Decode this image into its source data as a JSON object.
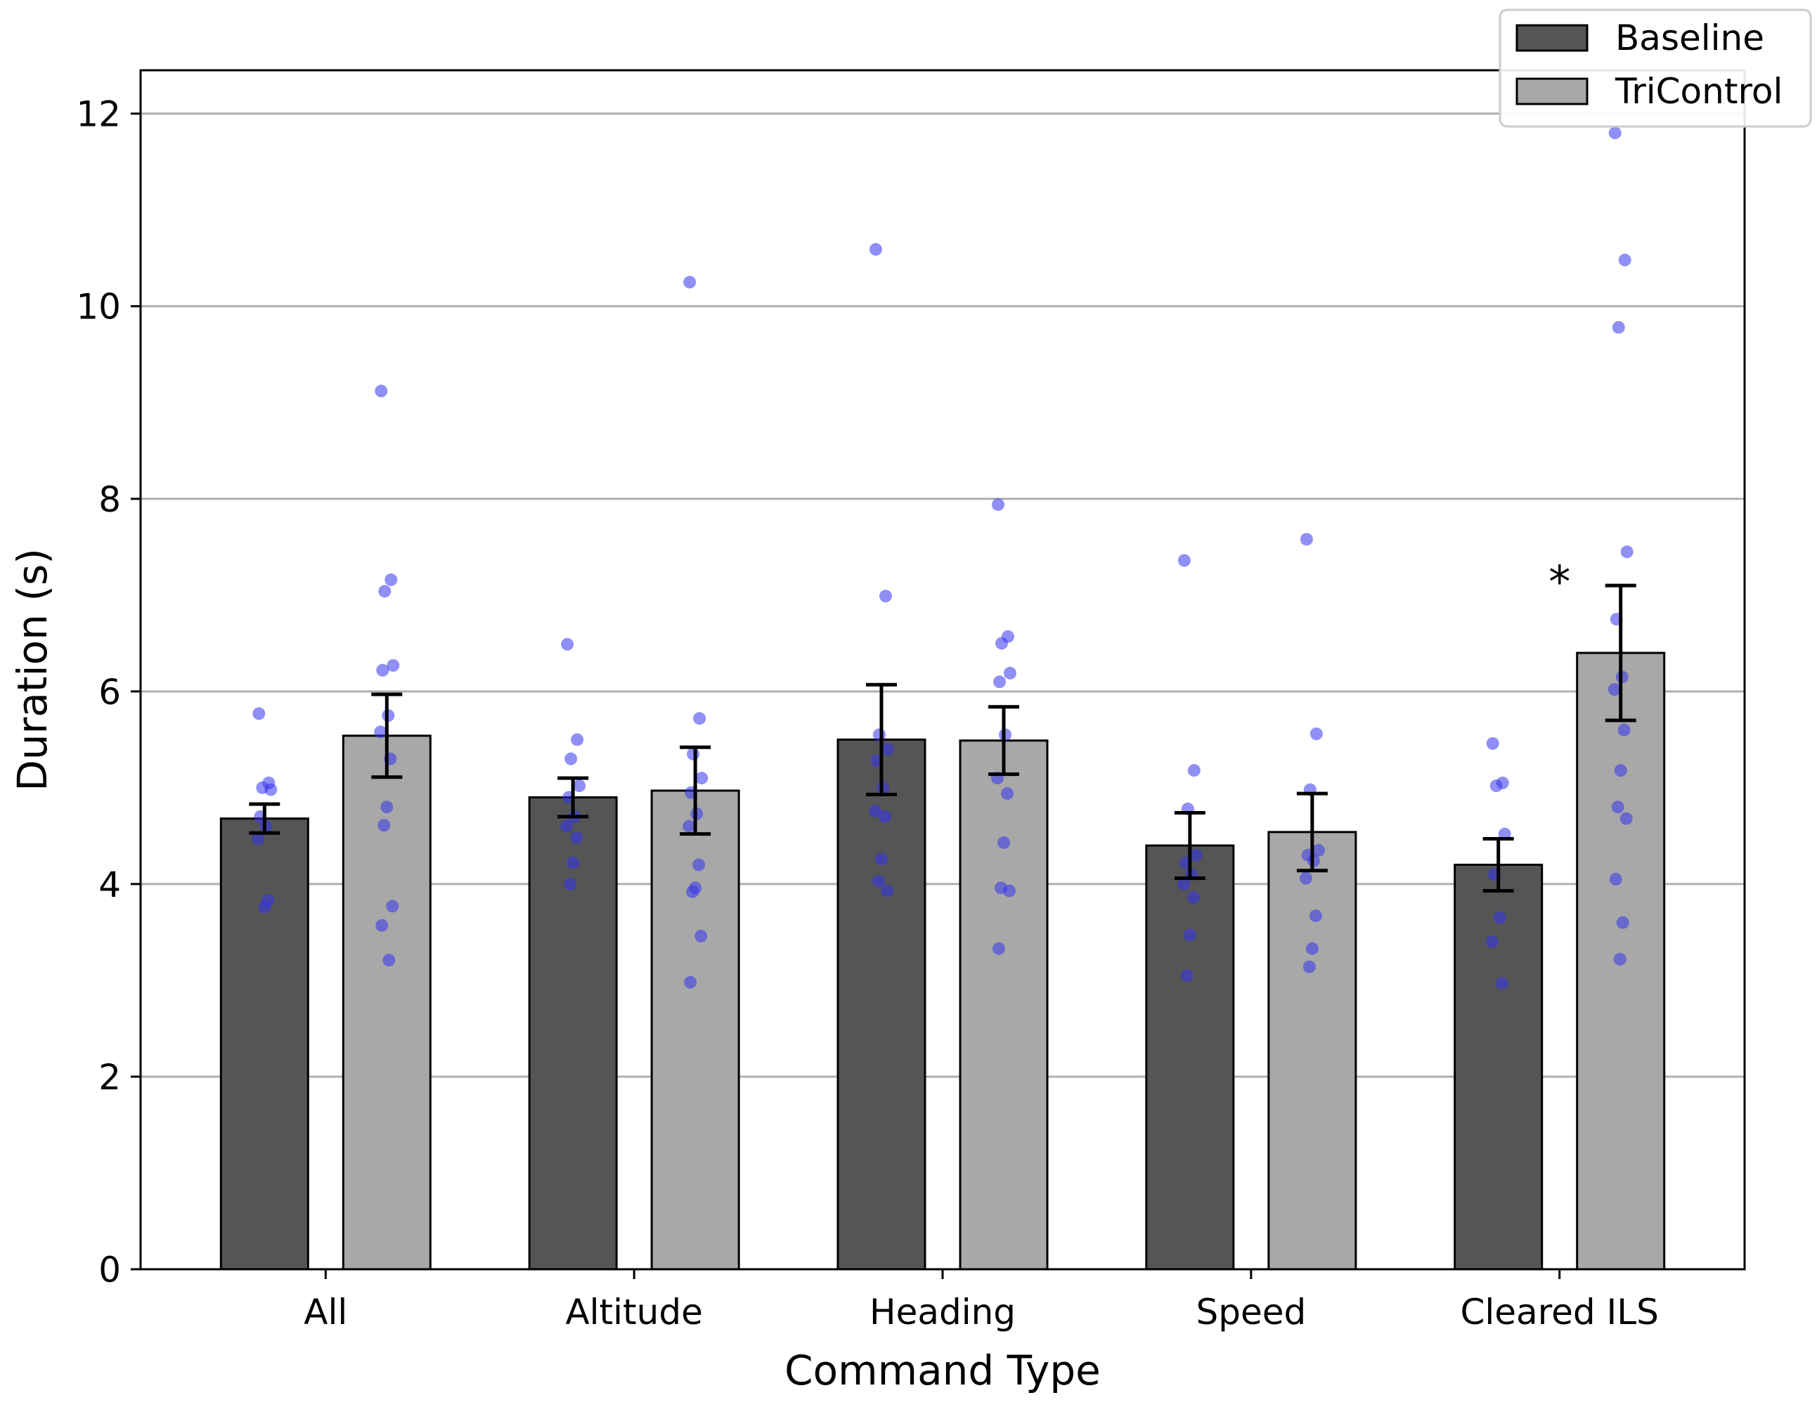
{
  "chart_data": {
    "type": "bar",
    "title": "",
    "xlabel": "Command Type",
    "ylabel": "Duration (s)",
    "ylim": [
      0,
      12.45
    ],
    "yticks": [
      0,
      2,
      4,
      6,
      8,
      10,
      12
    ],
    "grid": "horizontal",
    "legend_position": "top-right",
    "categories": [
      "All",
      "Altitude",
      "Heading",
      "Speed",
      "Cleared ILS"
    ],
    "series": [
      {
        "name": "Baseline",
        "color": "#555555",
        "values": [
          4.68,
          4.9,
          5.5,
          4.4,
          4.2
        ],
        "errors": [
          0.15,
          0.2,
          0.57,
          0.34,
          0.27
        ],
        "points": [
          [
            5.77,
            5.05,
            5.0,
            4.98,
            4.7,
            4.6,
            4.47,
            3.83,
            3.76
          ],
          [
            6.49,
            5.5,
            5.3,
            5.02,
            4.9,
            4.7,
            4.6,
            4.48,
            4.22,
            4.0
          ],
          [
            10.59,
            6.99,
            5.55,
            5.4,
            5.28,
            5.0,
            4.76,
            4.7,
            4.26,
            4.03,
            3.93
          ],
          [
            7.36,
            5.18,
            4.78,
            4.3,
            4.22,
            4.1,
            4.0,
            3.86,
            3.47,
            3.05
          ],
          [
            5.46,
            5.05,
            5.02,
            4.52,
            4.1,
            3.65,
            3.4,
            2.97
          ]
        ]
      },
      {
        "name": "TriControl",
        "color": "#a8a8a8",
        "values": [
          5.54,
          4.97,
          5.49,
          4.54,
          6.4
        ],
        "errors": [
          0.43,
          0.45,
          0.35,
          0.4,
          0.7
        ],
        "points": [
          [
            9.12,
            7.16,
            7.04,
            6.27,
            6.22,
            5.75,
            5.58,
            5.3,
            4.8,
            4.61,
            3.77,
            3.57,
            3.21
          ],
          [
            10.25,
            5.72,
            5.35,
            5.1,
            4.95,
            4.73,
            4.6,
            4.2,
            3.96,
            3.92,
            3.46,
            2.98
          ],
          [
            7.94,
            6.57,
            6.5,
            6.19,
            6.1,
            5.55,
            5.1,
            4.94,
            4.43,
            3.96,
            3.93,
            3.33
          ],
          [
            7.58,
            5.56,
            4.98,
            4.35,
            4.3,
            4.24,
            4.06,
            3.67,
            3.33,
            3.14
          ],
          [
            11.8,
            10.48,
            9.78,
            7.45,
            6.75,
            6.15,
            6.02,
            5.6,
            5.18,
            4.8,
            4.68,
            4.05,
            3.6,
            3.22
          ]
        ]
      }
    ],
    "point_color": "#3333ee",
    "annotations": [
      {
        "text": "*",
        "category": "Cleared ILS",
        "y": 7.2
      }
    ]
  }
}
